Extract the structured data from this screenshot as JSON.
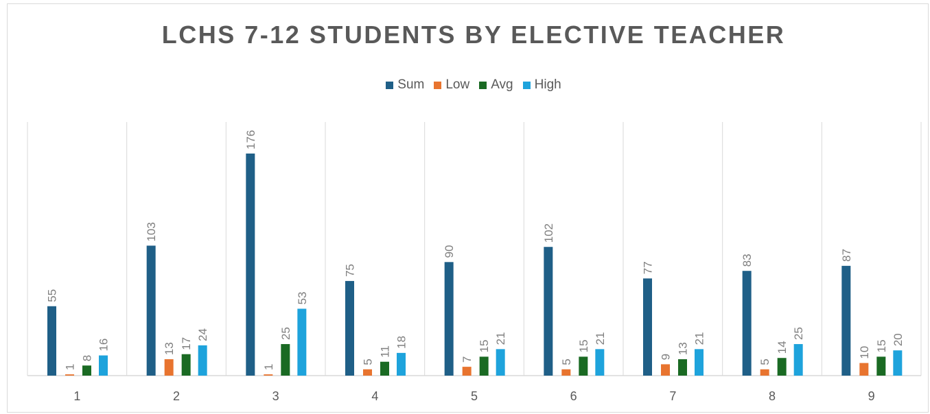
{
  "chart_data": {
    "type": "bar",
    "title": "LCHS 7-12 STUDENTS BY ELECTIVE TEACHER",
    "categories": [
      "1",
      "2",
      "3",
      "4",
      "5",
      "6",
      "7",
      "8",
      "9"
    ],
    "series": [
      {
        "name": "Sum",
        "color": "#1f5f87",
        "values": [
          55,
          103,
          176,
          75,
          90,
          102,
          77,
          83,
          87
        ]
      },
      {
        "name": "Low",
        "color": "#e8742f",
        "values": [
          1,
          13,
          1,
          5,
          7,
          5,
          9,
          5,
          10
        ]
      },
      {
        "name": "Avg",
        "color": "#1a6a23",
        "values": [
          8,
          17,
          25,
          11,
          15,
          15,
          13,
          14,
          15
        ]
      },
      {
        "name": "High",
        "color": "#1ea3dc",
        "values": [
          16,
          24,
          53,
          18,
          21,
          21,
          21,
          25,
          20
        ]
      }
    ],
    "ylim": [
      0,
      200
    ],
    "grid": "vertical category separators",
    "legend_position": "top"
  }
}
